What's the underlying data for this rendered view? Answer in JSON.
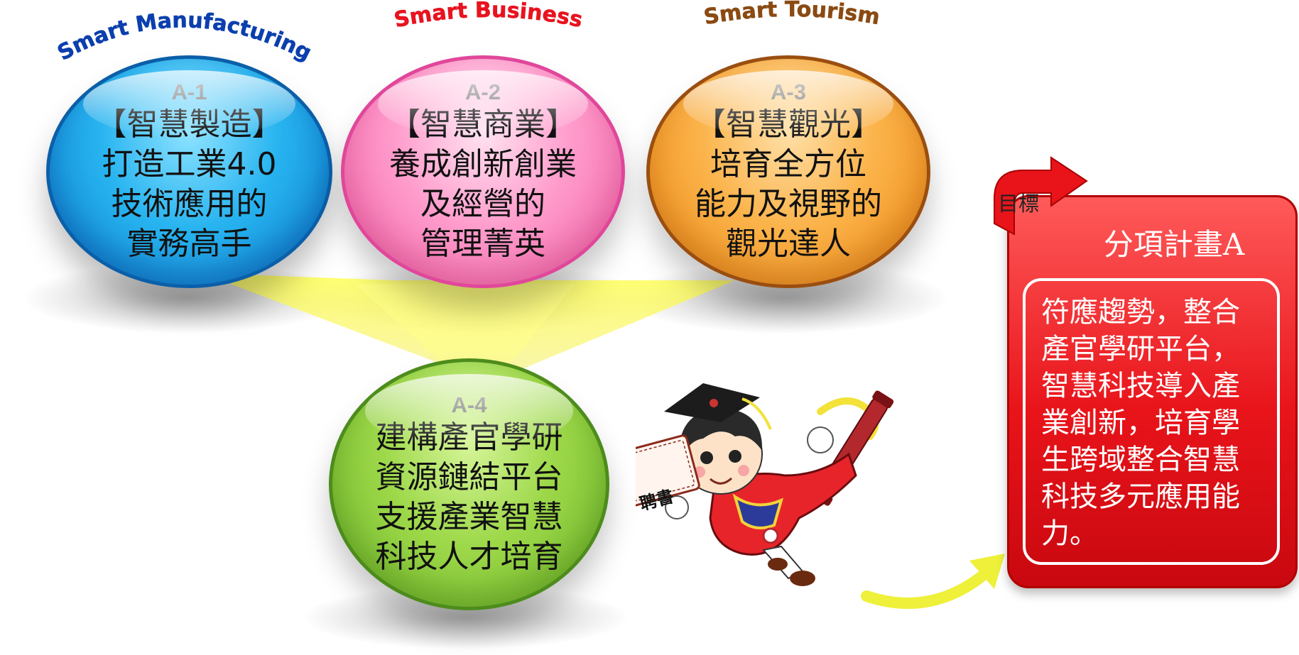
{
  "labels": {
    "smart_manufacturing": "Smart Manufacturing",
    "smart_business": "Smart Business",
    "smart_tourism": "Smart Tourism"
  },
  "bubbles": [
    {
      "code": "A-1",
      "lines": [
        "【智慧製造】",
        "打造工業4.0",
        "技術應用的",
        "實務高手"
      ]
    },
    {
      "code": "A-2",
      "lines": [
        "【智慧商業】",
        "養成創新創業",
        "及經營的",
        "管理菁英"
      ]
    },
    {
      "code": "A-3",
      "lines": [
        "【智慧觀光】",
        "培育全方位",
        "能力及視野的",
        "觀光達人"
      ]
    },
    {
      "code": "A-4",
      "lines": [
        "建構產官學研",
        "資源鏈結平台",
        "支援產業智慧",
        "科技人才培育"
      ]
    }
  ],
  "goal": {
    "tag": "目標",
    "title": "分項計畫A",
    "lines": [
      "符應趨勢，整合",
      "產官學研平台，",
      "智慧科技導入產",
      "業創新，培育學",
      "生跨域整合智慧",
      "科技多元應用能",
      "力。"
    ]
  },
  "mascot": {
    "certificate": "聘書"
  },
  "colors": {
    "manufacturing": "#0b3fae",
    "business": "#e8131f",
    "tourism": "#8a4a12",
    "panel": "#e8141a"
  }
}
